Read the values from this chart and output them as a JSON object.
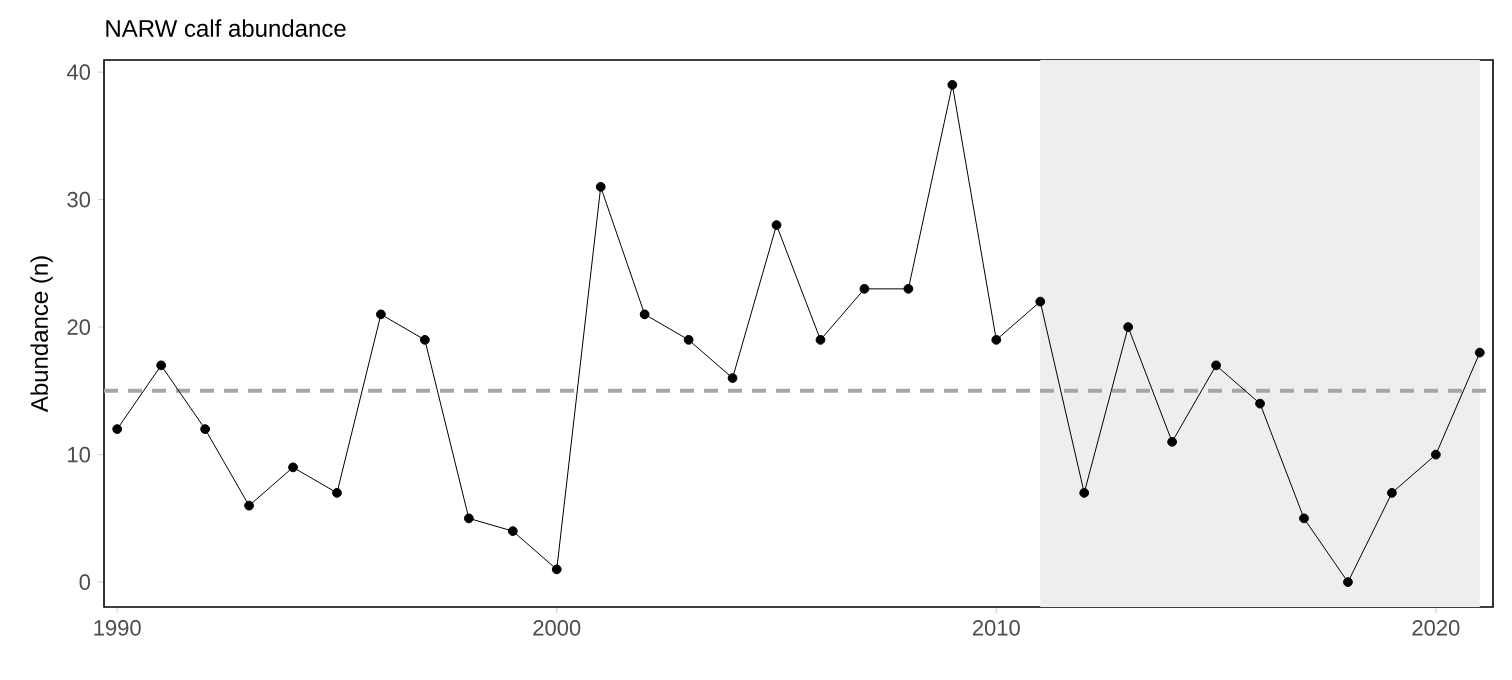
{
  "chart_data": {
    "type": "line",
    "title": "NARW calf abundance",
    "ylabel": "Abundance (n)",
    "x": [
      1990,
      1991,
      1992,
      1993,
      1994,
      1995,
      1996,
      1997,
      1998,
      1999,
      2000,
      2001,
      2002,
      2003,
      2004,
      2005,
      2006,
      2007,
      2008,
      2009,
      2010,
      2011,
      2012,
      2013,
      2014,
      2015,
      2016,
      2017,
      2018,
      2019,
      2020,
      2021
    ],
    "values": [
      12,
      17,
      12,
      6,
      9,
      7,
      21,
      19,
      5,
      4,
      1,
      31,
      21,
      19,
      16,
      28,
      19,
      23,
      23,
      39,
      19,
      22,
      7,
      20,
      11,
      17,
      14,
      5,
      0,
      7,
      10,
      18
    ],
    "color": "#000000",
    "marker": "circle",
    "line_style": "solid",
    "xlim": [
      1989.7,
      2021.3
    ],
    "ylim": [
      -1.95,
      40.95
    ],
    "xticks": [
      1990,
      2000,
      2010,
      2020
    ],
    "yticks": [
      0,
      10,
      20,
      30,
      40
    ],
    "ref_lines": [
      {
        "axis": "y",
        "value": 15,
        "color": "#a6a6a6",
        "line_style": "dashed"
      }
    ],
    "bands": [
      {
        "axis": "x",
        "from": 2011,
        "to": 2021,
        "color": "#eeeeee"
      }
    ]
  }
}
